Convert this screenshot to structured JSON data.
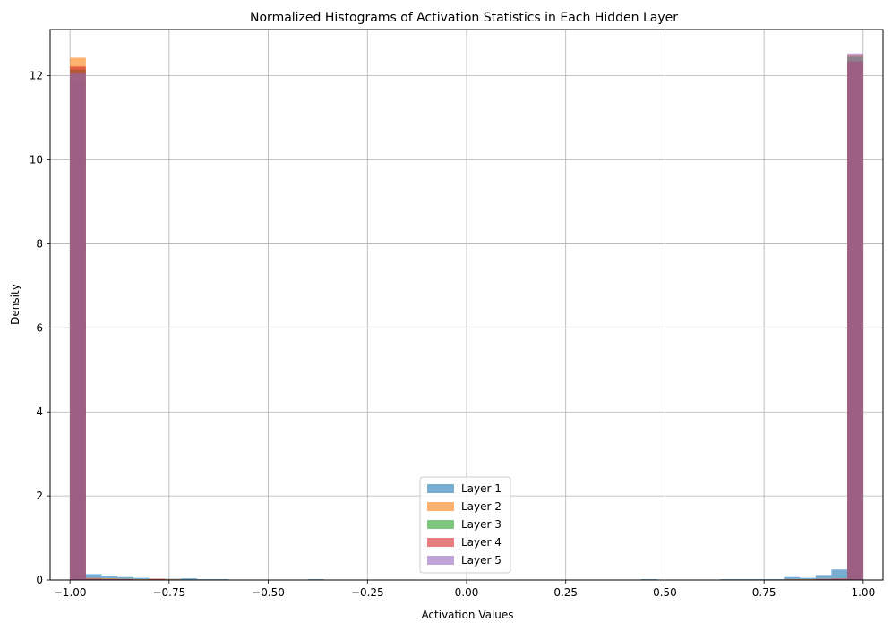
{
  "chart_data": {
    "type": "bar",
    "title": "Normalized Histograms of Activation Statistics in Each Hidden Layer",
    "xlabel": "Activation Values",
    "ylabel": "Density",
    "xlim": [
      -1.05,
      1.05
    ],
    "ylim": [
      0,
      13.1
    ],
    "x_ticks": [
      -1.0,
      -0.75,
      -0.5,
      -0.25,
      0.0,
      0.25,
      0.5,
      0.75,
      1.0
    ],
    "x_tick_labels": [
      "−1.00",
      "−0.75",
      "−0.50",
      "−0.25",
      "0.00",
      "0.25",
      "0.50",
      "0.75",
      "1.00"
    ],
    "y_ticks": [
      0,
      2,
      4,
      6,
      8,
      10,
      12
    ],
    "y_tick_labels": [
      "0",
      "2",
      "4",
      "6",
      "8",
      "10",
      "12"
    ],
    "grid": true,
    "legend_position": "bottom-center",
    "bin_width": 0.04,
    "bins_start": -1.0,
    "series": [
      {
        "name": "Layer 1",
        "color": "#1f77b4",
        "alpha": 0.6,
        "values": [
          11.9,
          0.14,
          0.1,
          0.07,
          0.05,
          0.03,
          0.03,
          0.04,
          0.02,
          0.02,
          0.01,
          0.01,
          0.01,
          0.01,
          0.01,
          0.02,
          0.01,
          0.01,
          0.01,
          0.01,
          0.01,
          0.01,
          0.01,
          0.01,
          0.01,
          0.01,
          0.01,
          0.01,
          0.01,
          0.01,
          0.01,
          0.01,
          0.01,
          0.01,
          0.01,
          0.01,
          0.02,
          0.01,
          0.01,
          0.01,
          0.01,
          0.02,
          0.02,
          0.02,
          0.02,
          0.07,
          0.05,
          0.12,
          0.25,
          12.35
        ]
      },
      {
        "name": "Layer 2",
        "color": "#ff7f0e",
        "alpha": 0.6,
        "values": [
          12.43,
          0.05,
          0.04,
          0.03,
          0.02,
          0.02,
          0.02,
          0.01,
          0.01,
          0.01,
          0.01,
          0.01,
          0.01,
          0.01,
          0.01,
          0.01,
          0.01,
          0.01,
          0.01,
          0.01,
          0.01,
          0.01,
          0.01,
          0.01,
          0.01,
          0.01,
          0.01,
          0.01,
          0.01,
          0.01,
          0.01,
          0.01,
          0.01,
          0.01,
          0.01,
          0.01,
          0.01,
          0.01,
          0.01,
          0.01,
          0.01,
          0.01,
          0.01,
          0.01,
          0.01,
          0.02,
          0.02,
          0.03,
          0.04,
          12.5
        ]
      },
      {
        "name": "Layer 3",
        "color": "#2ca02c",
        "alpha": 0.6,
        "values": [
          12.15,
          0.03,
          0.02,
          0.02,
          0.01,
          0.01,
          0.01,
          0.01,
          0.01,
          0.01,
          0.01,
          0.01,
          0.01,
          0.01,
          0.01,
          0.01,
          0.01,
          0.01,
          0.01,
          0.01,
          0.01,
          0.01,
          0.01,
          0.01,
          0.01,
          0.01,
          0.01,
          0.01,
          0.01,
          0.01,
          0.01,
          0.01,
          0.01,
          0.01,
          0.01,
          0.01,
          0.01,
          0.01,
          0.01,
          0.01,
          0.01,
          0.01,
          0.01,
          0.01,
          0.01,
          0.01,
          0.01,
          0.02,
          0.03,
          12.45
        ]
      },
      {
        "name": "Layer 4",
        "color": "#d62728",
        "alpha": 0.6,
        "values": [
          12.22,
          0.03,
          0.02,
          0.02,
          0.01,
          0.03,
          0.01,
          0.01,
          0.01,
          0.01,
          0.01,
          0.01,
          0.01,
          0.01,
          0.01,
          0.01,
          0.01,
          0.01,
          0.01,
          0.01,
          0.01,
          0.01,
          0.01,
          0.01,
          0.01,
          0.01,
          0.01,
          0.01,
          0.01,
          0.01,
          0.01,
          0.01,
          0.01,
          0.01,
          0.01,
          0.01,
          0.01,
          0.01,
          0.01,
          0.01,
          0.01,
          0.01,
          0.01,
          0.01,
          0.01,
          0.01,
          0.01,
          0.02,
          0.03,
          12.34
        ]
      },
      {
        "name": "Layer 5",
        "color": "#9467bd",
        "alpha": 0.6,
        "values": [
          12.05,
          0.03,
          0.02,
          0.02,
          0.01,
          0.01,
          0.01,
          0.01,
          0.01,
          0.01,
          0.01,
          0.01,
          0.01,
          0.01,
          0.01,
          0.01,
          0.01,
          0.01,
          0.01,
          0.01,
          0.01,
          0.01,
          0.01,
          0.01,
          0.01,
          0.01,
          0.01,
          0.01,
          0.01,
          0.01,
          0.01,
          0.01,
          0.01,
          0.01,
          0.01,
          0.01,
          0.01,
          0.01,
          0.01,
          0.01,
          0.01,
          0.01,
          0.01,
          0.01,
          0.01,
          0.01,
          0.01,
          0.02,
          0.03,
          12.53
        ]
      }
    ]
  }
}
